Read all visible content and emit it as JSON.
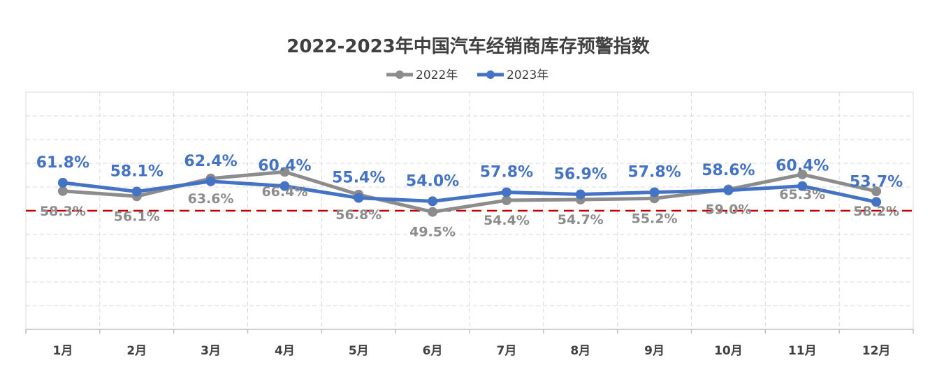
{
  "chart_data": {
    "type": "line",
    "title": "2022-2023年中国汽车经销商库存预警指数",
    "categories": [
      "1月",
      "2月",
      "3月",
      "4月",
      "5月",
      "6月",
      "7月",
      "8月",
      "9月",
      "10月",
      "11月",
      "12月"
    ],
    "series": [
      {
        "name": "2022年",
        "color": "#8c8c8c",
        "values": [
          58.3,
          56.1,
          63.6,
          66.4,
          56.8,
          49.5,
          54.4,
          54.7,
          55.2,
          59.0,
          65.3,
          58.2
        ],
        "labels": [
          "58.3%",
          "56.1%",
          "63.6%",
          "66.4%",
          "56.8%",
          "49.5%",
          "54.4%",
          "54.7%",
          "55.2%",
          "59.0%",
          "65.3%",
          "58.2%"
        ]
      },
      {
        "name": "2023年",
        "color": "#4472c4",
        "values": [
          61.8,
          58.1,
          62.4,
          60.4,
          55.4,
          54.0,
          57.8,
          56.9,
          57.8,
          58.6,
          60.4,
          53.7
        ],
        "labels": [
          "61.8%",
          "58.1%",
          "62.4%",
          "60.4%",
          "55.4%",
          "54.0%",
          "57.8%",
          "56.9%",
          "57.8%",
          "58.6%",
          "60.4%",
          "53.7%"
        ]
      }
    ],
    "reference_line": {
      "value": 50,
      "color": "#c00000",
      "style": "dashed"
    },
    "ylim": [
      0,
      100
    ],
    "grid": true,
    "legend_position": "top-center"
  }
}
